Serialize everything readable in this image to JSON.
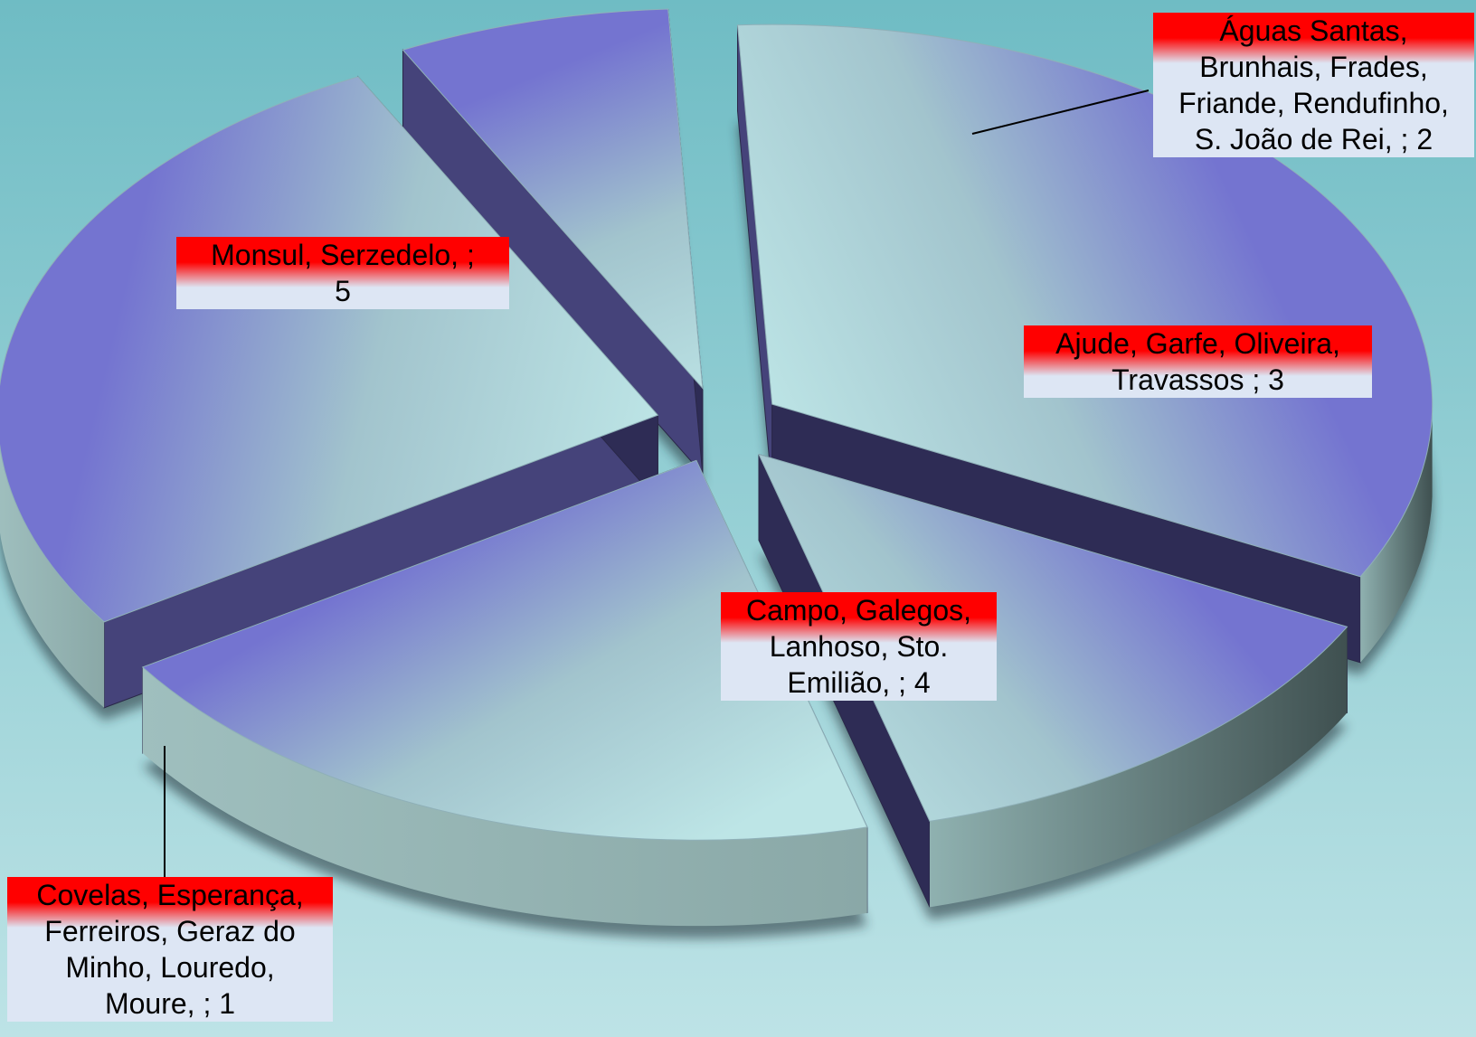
{
  "chart_data": {
    "type": "pie",
    "style": "3d-exploded",
    "title": "",
    "slices": [
      {
        "label_lines": [
          "Monsul, Serzedelo,  ;",
          "5"
        ],
        "value": 5
      },
      {
        "label_lines": [
          "Águas Santas,",
          "Brunhais, Frades,",
          "Friande, Rendufinho,",
          "S. João de Rei,  ; 2"
        ],
        "value": 2
      },
      {
        "label_lines": [
          "Ajude, Garfe, Oliveira,",
          "Travassos ; 3"
        ],
        "value": 3
      },
      {
        "label_lines": [
          "Campo, Galegos,",
          "Lanhoso, Sto.",
          "Emilião,  ; 4"
        ],
        "value": 4
      },
      {
        "label_lines": [
          "Covelas, Esperança,",
          "Ferreiros, Geraz do",
          "Minho, Louredo,",
          "Moure,  ; 1"
        ],
        "value": 1
      }
    ],
    "colors": {
      "background_top": "#6fbcc4",
      "background_bottom": "#bde3e6",
      "slice_top": "#7474d0",
      "slice_face": "#b7e0e3",
      "side_dark": "#2e2c55",
      "outer_side": "#7a9898",
      "label_red": "#ff0000",
      "label_light": "#dde6f4"
    }
  }
}
